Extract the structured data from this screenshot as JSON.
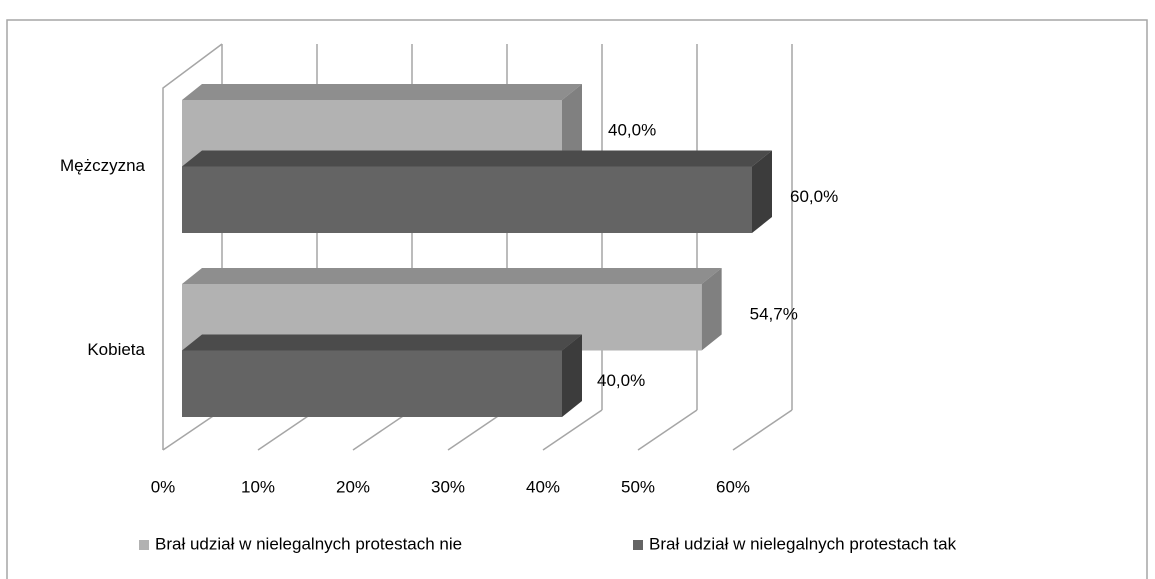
{
  "chart_data": {
    "type": "bar3d_horizontal",
    "categories": [
      "Mężczyzna",
      "Kobieta"
    ],
    "series": [
      {
        "name": "Brał udział w nielegalnych protestach nie",
        "color": "#b2b2b2",
        "values": [
          40.0,
          54.7
        ],
        "value_labels": [
          "40,0%",
          "54,7%"
        ]
      },
      {
        "name": "Brał udział w nielegalnych protestach tak",
        "color": "#646464",
        "values": [
          60.0,
          40.0
        ],
        "value_labels": [
          "60,0%",
          "40,0%"
        ]
      }
    ],
    "xlim": [
      0,
      60
    ],
    "xticks": [
      {
        "value": 0,
        "label": "0%"
      },
      {
        "value": 10,
        "label": "10%"
      },
      {
        "value": 20,
        "label": "20%"
      },
      {
        "value": 30,
        "label": "30%"
      },
      {
        "value": 40,
        "label": "40%"
      },
      {
        "value": 50,
        "label": "50%"
      },
      {
        "value": 60,
        "label": "60%"
      }
    ],
    "grid": true,
    "legend": "bottom"
  }
}
